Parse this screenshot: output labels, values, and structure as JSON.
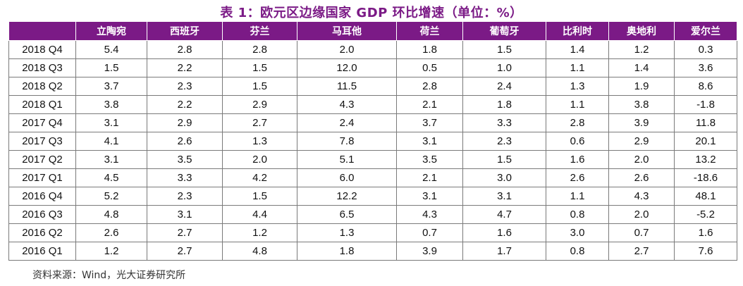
{
  "title": "表 1：欧元区边缘国家 GDP 环比增速（单位：%）",
  "columns": [
    "立陶宛",
    "西班牙",
    "芬兰",
    "马耳他",
    "荷兰",
    "葡萄牙",
    "比利时",
    "奥地利",
    "爱尔兰"
  ],
  "rows": [
    {
      "label": "2018 Q4",
      "values": [
        "5.4",
        "2.8",
        "2.8",
        "2.0",
        "1.8",
        "1.5",
        "1.4",
        "1.2",
        "0.3"
      ]
    },
    {
      "label": "2018 Q3",
      "values": [
        "1.5",
        "2.2",
        "1.5",
        "12.0",
        "0.5",
        "1.0",
        "1.1",
        "1.4",
        "3.6"
      ]
    },
    {
      "label": "2018 Q2",
      "values": [
        "3.7",
        "2.3",
        "1.5",
        "11.5",
        "2.8",
        "2.4",
        "1.3",
        "1.9",
        "8.6"
      ]
    },
    {
      "label": "2018 Q1",
      "values": [
        "3.8",
        "2.2",
        "2.9",
        "4.3",
        "2.1",
        "1.8",
        "1.1",
        "3.8",
        "-1.8"
      ]
    },
    {
      "label": "2017 Q4",
      "values": [
        "3.1",
        "2.9",
        "2.7",
        "2.4",
        "3.7",
        "3.3",
        "2.8",
        "3.9",
        "11.8"
      ]
    },
    {
      "label": "2017 Q3",
      "values": [
        "4.1",
        "2.6",
        "1.3",
        "7.8",
        "3.1",
        "2.3",
        "0.6",
        "2.9",
        "20.1"
      ]
    },
    {
      "label": "2017 Q2",
      "values": [
        "3.1",
        "3.5",
        "2.0",
        "5.1",
        "3.5",
        "1.5",
        "1.6",
        "2.0",
        "13.2"
      ]
    },
    {
      "label": "2017 Q1",
      "values": [
        "4.5",
        "3.3",
        "4.2",
        "6.0",
        "2.1",
        "3.0",
        "2.6",
        "2.6",
        "-18.6"
      ]
    },
    {
      "label": "2016 Q4",
      "values": [
        "5.2",
        "2.3",
        "1.5",
        "12.2",
        "3.1",
        "3.1",
        "1.1",
        "4.3",
        "48.1"
      ]
    },
    {
      "label": "2016 Q3",
      "values": [
        "4.8",
        "3.1",
        "4.4",
        "6.5",
        "4.3",
        "4.7",
        "0.8",
        "2.0",
        "-5.2"
      ]
    },
    {
      "label": "2016 Q2",
      "values": [
        "2.6",
        "2.7",
        "1.2",
        "1.3",
        "0.7",
        "1.6",
        "3.0",
        "0.7",
        "1.6"
      ]
    },
    {
      "label": "2016 Q1",
      "values": [
        "1.2",
        "2.7",
        "4.8",
        "1.8",
        "3.9",
        "1.7",
        "0.8",
        "2.7",
        "7.6"
      ]
    }
  ],
  "source": "资料来源：Wind，光大证券研究所",
  "colors": {
    "header_bg": "#7b1a86",
    "title": "#7b1a86"
  }
}
